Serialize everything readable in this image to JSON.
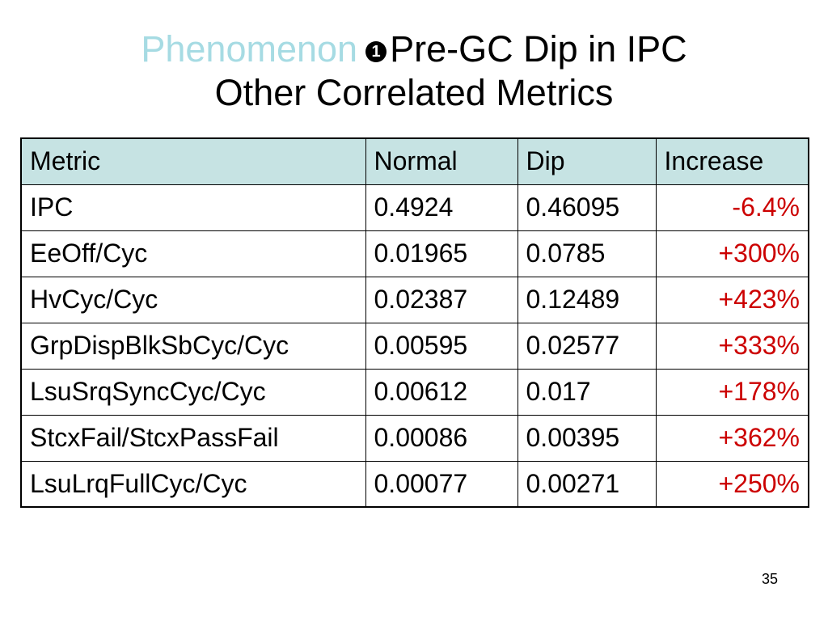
{
  "title": {
    "phenomenon_label": "Phenomenon",
    "marker": "1",
    "heading": "Pre-GC Dip in IPC",
    "subheading": "Other Correlated Metrics"
  },
  "table": {
    "headers": [
      "Metric",
      "Normal",
      "Dip",
      "Increase"
    ],
    "rows": [
      {
        "metric": "IPC",
        "normal": "0.4924",
        "dip": "0.46095",
        "increase": "-6.4%"
      },
      {
        "metric": "EeOff/Cyc",
        "normal": "0.01965",
        "dip": "0.0785",
        "increase": "+300%"
      },
      {
        "metric": "HvCyc/Cyc",
        "normal": "0.02387",
        "dip": "0.12489",
        "increase": "+423%"
      },
      {
        "metric": "GrpDispBlkSbCyc/Cyc",
        "normal": "0.00595",
        "dip": "0.02577",
        "increase": "+333%"
      },
      {
        "metric": "LsuSrqSyncCyc/Cyc",
        "normal": "0.00612",
        "dip": "0.017",
        "increase": "+178%"
      },
      {
        "metric": "StcxFail/StcxPassFail",
        "normal": "0.00086",
        "dip": "0.00395",
        "increase": "+362%"
      },
      {
        "metric": "LsuLrqFullCyc/Cyc",
        "normal": "0.00077",
        "dip": "0.00271",
        "increase": "+250%"
      }
    ]
  },
  "slide_number": "35",
  "colors": {
    "title_accent": "#a6dbe3",
    "header_fill": "#c6e3e3",
    "increase_text": "#cc0000"
  }
}
